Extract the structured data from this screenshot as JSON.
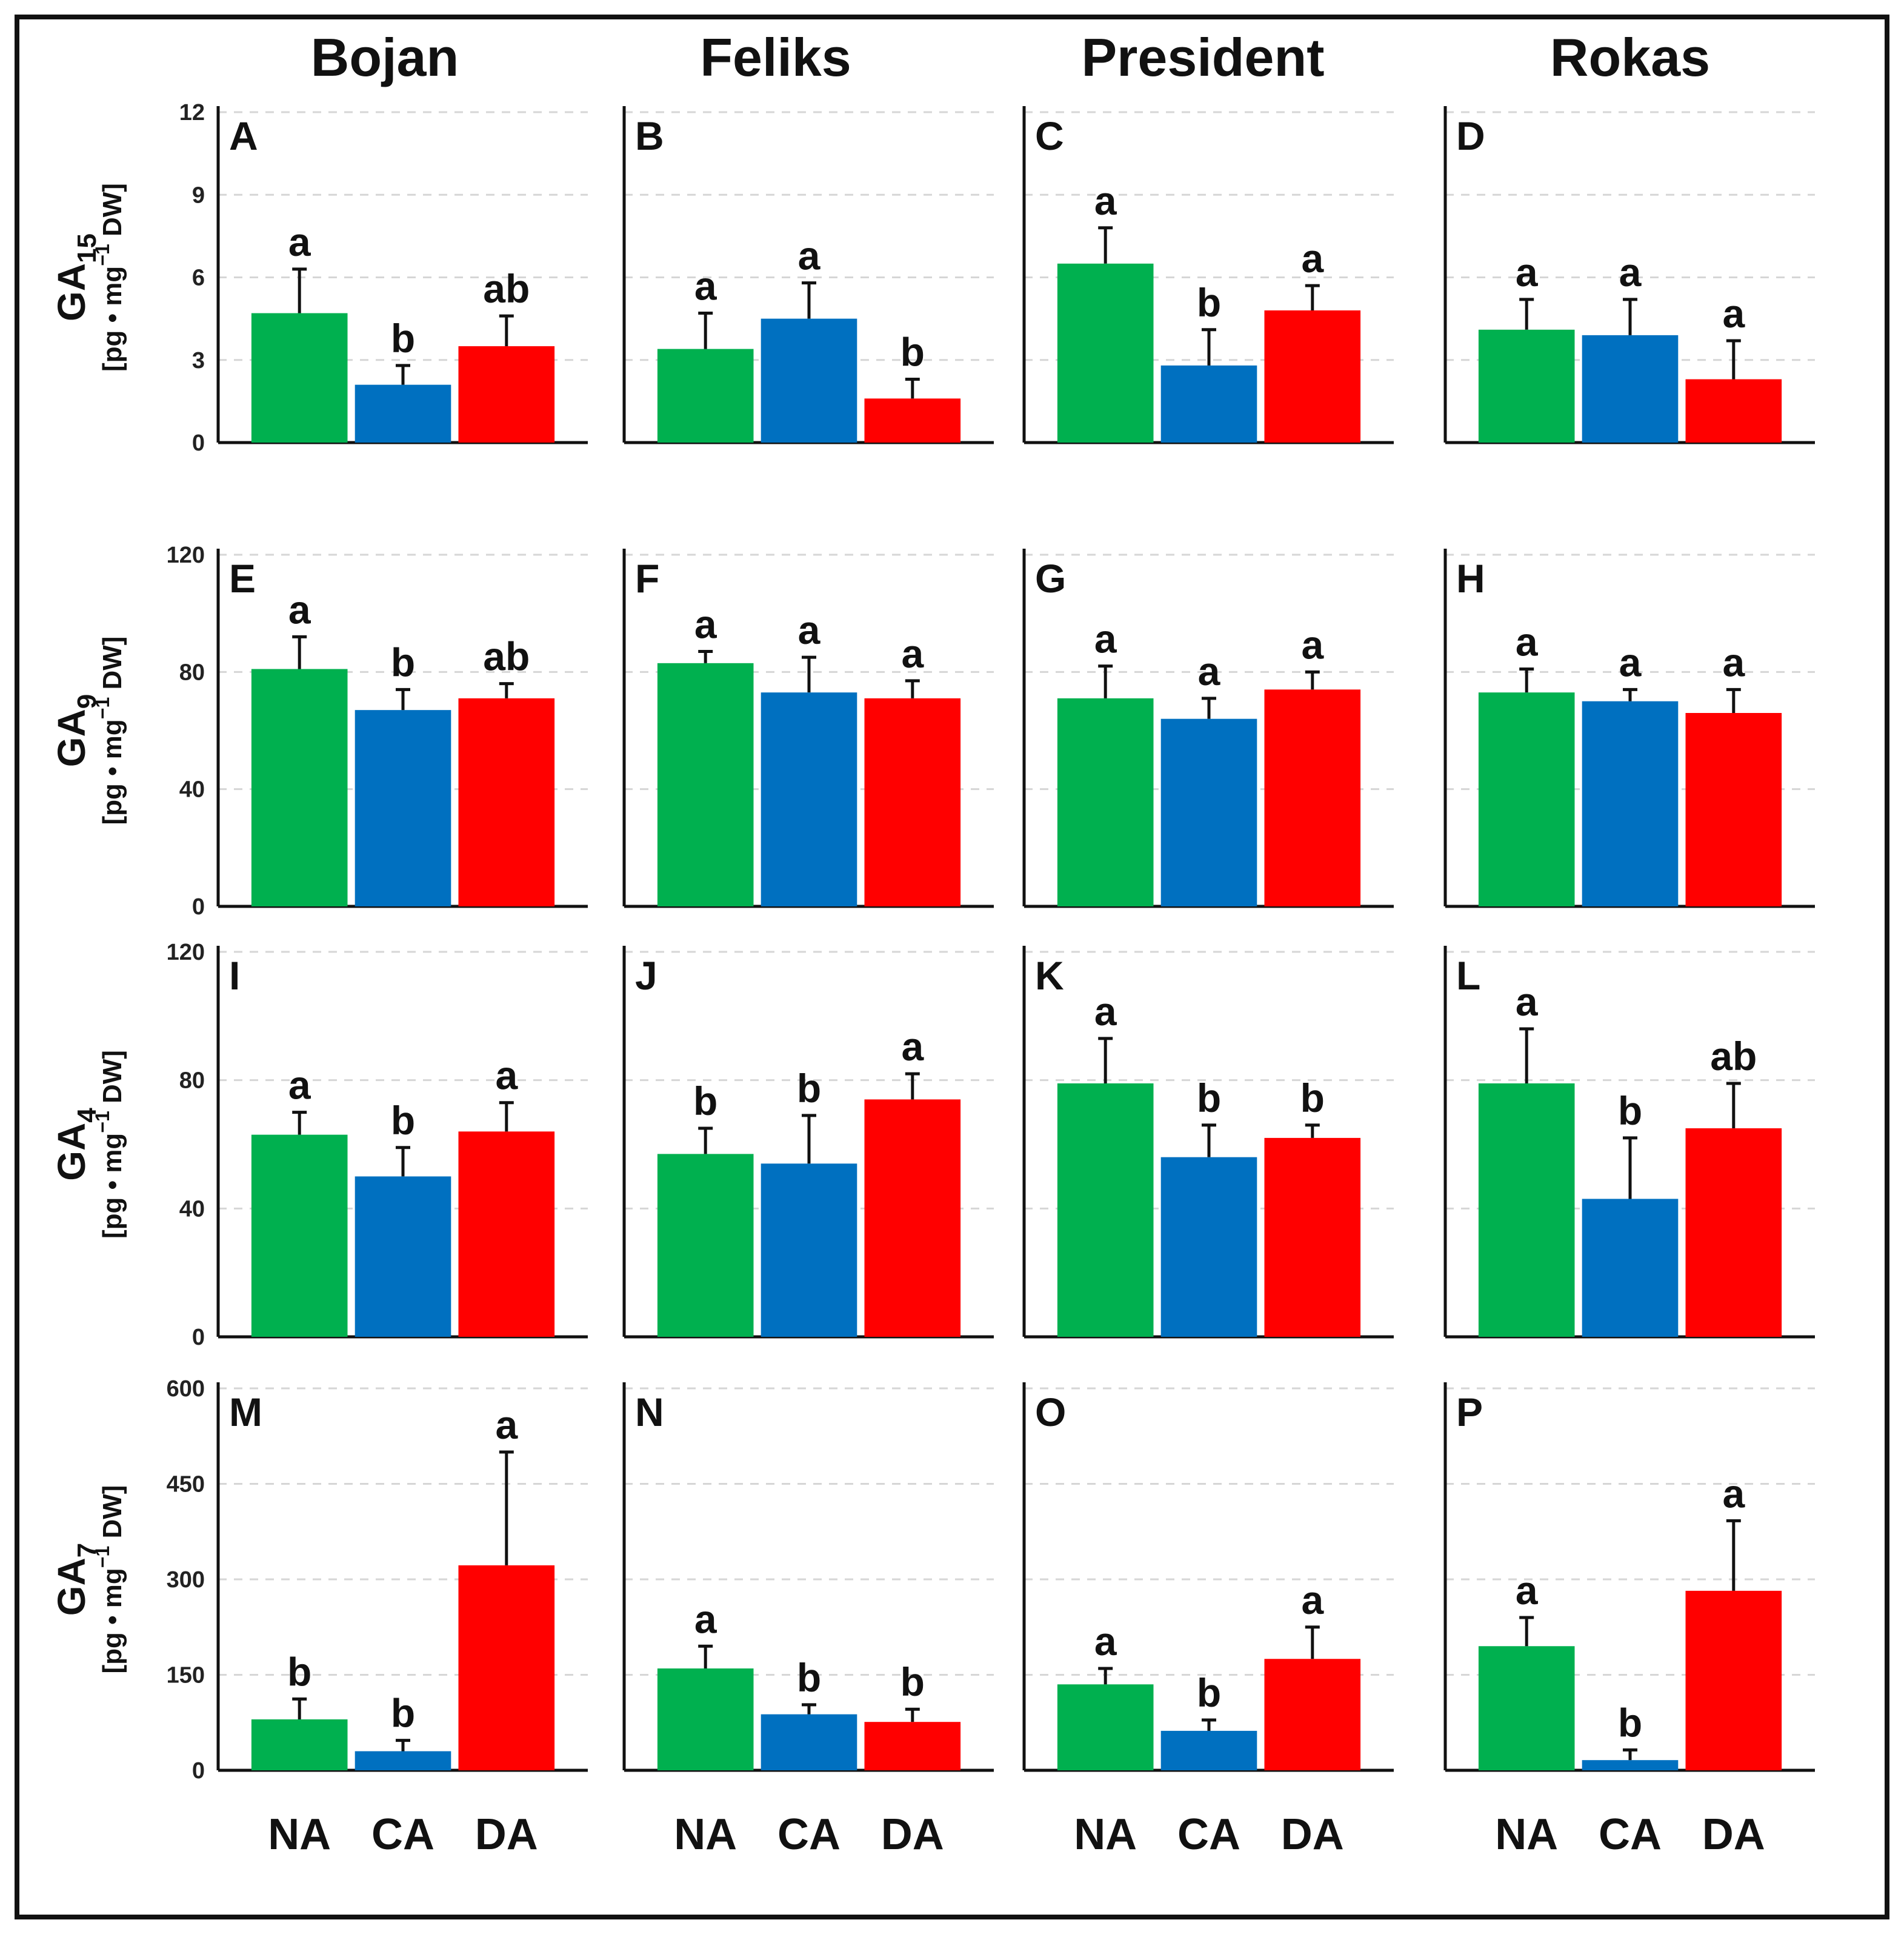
{
  "chart_data": {
    "type": "bar",
    "title": "",
    "columns": [
      "Bojan",
      "Feliks",
      "President",
      "Rokas"
    ],
    "categories": [
      "NA",
      "CA",
      "DA"
    ],
    "colors": {
      "NA": "#00b04f",
      "CA": "#0070c0",
      "DA": "#ff0000"
    },
    "rows": [
      {
        "hormone": "GA",
        "subscript": "15",
        "unit_prefix": "[pg • mg",
        "unit_power": "−1",
        "unit_suffix": " DW]",
        "ylim": [
          0,
          12
        ],
        "ticks": [
          "0",
          "3",
          "6",
          "9",
          "12"
        ],
        "tick_values": [
          0,
          3,
          6,
          9,
          12
        ],
        "panels": [
          {
            "letter": "A",
            "values": [
              4.7,
              2.1,
              3.5
            ],
            "errors": [
              1.6,
              0.7,
              1.1
            ],
            "sig": [
              "a",
              "b",
              "ab"
            ]
          },
          {
            "letter": "B",
            "values": [
              3.4,
              4.5,
              1.6
            ],
            "errors": [
              1.3,
              1.3,
              0.7
            ],
            "sig": [
              "a",
              "a",
              "b"
            ]
          },
          {
            "letter": "C",
            "values": [
              6.5,
              2.8,
              4.8
            ],
            "errors": [
              1.3,
              1.3,
              0.9
            ],
            "sig": [
              "a",
              "b",
              "a"
            ]
          },
          {
            "letter": "D",
            "values": [
              4.1,
              3.9,
              2.3
            ],
            "errors": [
              1.1,
              1.3,
              1.4
            ],
            "sig": [
              "a",
              "a",
              "a"
            ]
          }
        ]
      },
      {
        "hormone": "GA",
        "subscript": "9",
        "unit_prefix": "[pg • mg",
        "unit_power": "−1",
        "unit_suffix": "  DW]",
        "ylim": [
          0,
          120
        ],
        "ticks": [
          "0",
          "40",
          "80",
          "120"
        ],
        "tick_values": [
          0,
          40,
          80,
          120
        ],
        "panels": [
          {
            "letter": "E",
            "values": [
              81,
              67,
              71
            ],
            "errors": [
              11,
              7,
              5
            ],
            "sig": [
              "a",
              "b",
              "ab"
            ]
          },
          {
            "letter": "F",
            "values": [
              83,
              73,
              71
            ],
            "errors": [
              4,
              12,
              6
            ],
            "sig": [
              "a",
              "a",
              "a"
            ]
          },
          {
            "letter": "G",
            "values": [
              71,
              64,
              74
            ],
            "errors": [
              11,
              7,
              6
            ],
            "sig": [
              "a",
              "a",
              "a"
            ]
          },
          {
            "letter": "H",
            "values": [
              73,
              70,
              66
            ],
            "errors": [
              8,
              4,
              8
            ],
            "sig": [
              "a",
              "a",
              "a"
            ]
          }
        ]
      },
      {
        "hormone": "GA",
        "subscript": "4",
        "unit_prefix": "[pg • mg",
        "unit_power": "−1",
        "unit_suffix": "  DW]",
        "ylim": [
          0,
          120
        ],
        "ticks": [
          "0",
          "40",
          "80",
          "120"
        ],
        "tick_values": [
          0,
          40,
          80,
          120
        ],
        "panels": [
          {
            "letter": "I",
            "values": [
              63,
              50,
              64
            ],
            "errors": [
              7,
              9,
              9
            ],
            "sig": [
              "a",
              "b",
              "a"
            ]
          },
          {
            "letter": "J",
            "values": [
              57,
              54,
              74
            ],
            "errors": [
              8,
              15,
              8
            ],
            "sig": [
              "b",
              "b",
              "a"
            ]
          },
          {
            "letter": "K",
            "values": [
              79,
              56,
              62
            ],
            "errors": [
              14,
              10,
              4
            ],
            "sig": [
              "a",
              "b",
              "b"
            ]
          },
          {
            "letter": "L",
            "values": [
              79,
              43,
              65
            ],
            "errors": [
              17,
              19,
              14
            ],
            "sig": [
              "a",
              "b",
              "ab"
            ]
          }
        ]
      },
      {
        "hormone": "GA",
        "subscript": "7",
        "unit_prefix": "[pg • mg",
        "unit_power": "−1",
        "unit_suffix": " DW]",
        "ylim": [
          0,
          600
        ],
        "ticks": [
          "0",
          "150",
          "300",
          "450",
          "600"
        ],
        "tick_values": [
          0,
          150,
          300,
          450,
          600
        ],
        "panels": [
          {
            "letter": "M",
            "values": [
              80,
              30,
              322
            ],
            "errors": [
              32,
              17,
              178
            ],
            "sig": [
              "b",
              "b",
              "a"
            ]
          },
          {
            "letter": "N",
            "values": [
              160,
              88,
              76
            ],
            "errors": [
              35,
              15,
              20
            ],
            "sig": [
              "a",
              "b",
              "b"
            ]
          },
          {
            "letter": "O",
            "values": [
              135,
              62,
              175
            ],
            "errors": [
              25,
              17,
              50
            ],
            "sig": [
              "a",
              "b",
              "a"
            ]
          },
          {
            "letter": "P",
            "values": [
              195,
              16,
              282
            ],
            "errors": [
              45,
              16,
              110
            ],
            "sig": [
              "a",
              "b",
              "a"
            ]
          }
        ]
      }
    ],
    "xlabel": "",
    "ylabel": "",
    "grid": true,
    "legend": "none"
  }
}
